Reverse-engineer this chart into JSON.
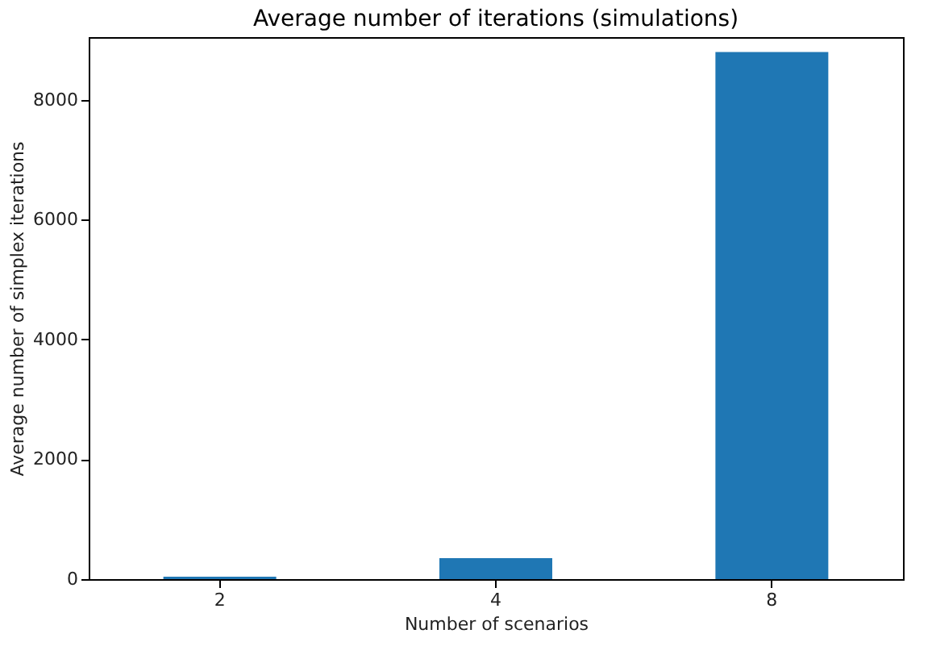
{
  "chart_data": {
    "type": "bar",
    "title": "Average number of iterations (simulations)",
    "xlabel": "Number of scenarios",
    "ylabel": "Average number of simplex iterations",
    "categories": [
      "2",
      "4",
      "8"
    ],
    "values": [
      40,
      350,
      8800
    ],
    "color": "#1f77b4",
    "ylim": [
      0,
      9050
    ],
    "yticks": [
      0,
      2000,
      4000,
      6000,
      8000
    ],
    "grid": false
  }
}
